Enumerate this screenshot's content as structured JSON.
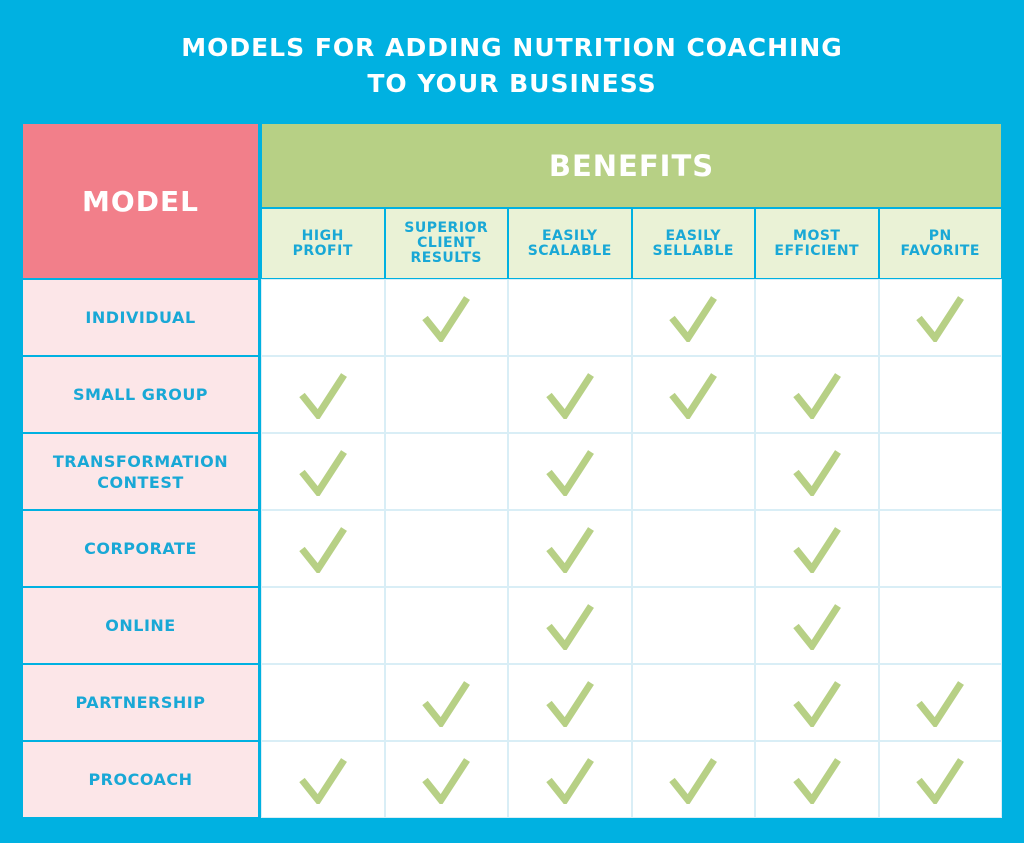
{
  "title": {
    "line1": "MODELS FOR ADDING NUTRITION COACHING",
    "line2": "TO YOUR BUSINESS"
  },
  "headers": {
    "model": "MODEL",
    "benefits": "BENEFITS"
  },
  "benefit_columns": [
    "HIGH\nPROFIT",
    "SUPERIOR\nCLIENT\nRESULTS",
    "EASILY\nSCALABLE",
    "EASILY\nSELLABLE",
    "MOST\nEFFICIENT",
    "PN\nFAVORITE"
  ],
  "rows": [
    {
      "label": "INDIVIDUAL",
      "checks": [
        false,
        true,
        false,
        true,
        false,
        true
      ]
    },
    {
      "label": "SMALL GROUP",
      "checks": [
        true,
        false,
        true,
        true,
        true,
        false
      ]
    },
    {
      "label": "TRANSFORMATION\nCONTEST",
      "checks": [
        true,
        false,
        true,
        false,
        true,
        false
      ]
    },
    {
      "label": "CORPORATE",
      "checks": [
        true,
        false,
        true,
        false,
        true,
        false
      ]
    },
    {
      "label": "ONLINE",
      "checks": [
        false,
        false,
        true,
        false,
        true,
        false
      ]
    },
    {
      "label": "PARTNERSHIP",
      "checks": [
        false,
        true,
        true,
        false,
        true,
        true
      ]
    },
    {
      "label": "PROCOACH",
      "checks": [
        true,
        true,
        true,
        true,
        true,
        true
      ]
    }
  ],
  "icons": {
    "check": "checkmark-icon"
  },
  "colors": {
    "background": "#00b1e1",
    "model_header": "#f27f8a",
    "benefits_header": "#b7d085",
    "benefit_column_bg": "#eaf2d6",
    "row_label_bg": "#fce6e8",
    "text_blue": "#19a8d6",
    "check_green": "#b7d085"
  }
}
